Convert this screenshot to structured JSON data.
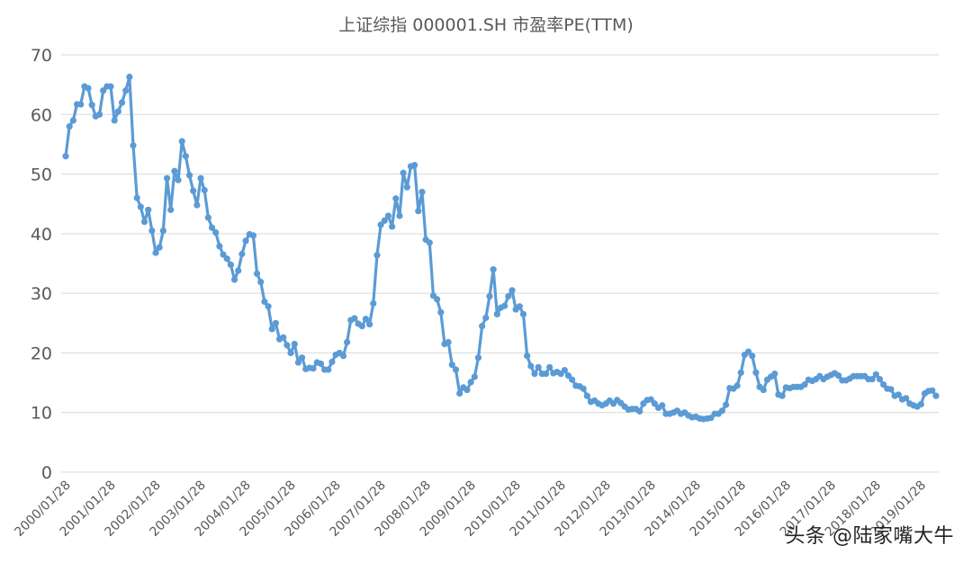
{
  "watermark": "头条 @陆家嘴大牛",
  "colors": {
    "series": "#5b9bd5",
    "grid": "#d9d9d9",
    "text": "#595959"
  },
  "chart_data": {
    "type": "line",
    "title": "上证综指 000001.SH 市盈率PE(TTM)",
    "xlabel": "",
    "ylabel": "",
    "ylim": [
      0,
      70
    ],
    "yticks": [
      0,
      10,
      20,
      30,
      40,
      50,
      60,
      70
    ],
    "grid": true,
    "legend": "none",
    "x_start": "2000/01/28",
    "x_ticks": [
      "2000/01/28",
      "2001/01/28",
      "2002/01/28",
      "2003/01/28",
      "2004/01/28",
      "2005/01/28",
      "2006/01/28",
      "2007/01/28",
      "2008/01/28",
      "2009/01/28",
      "2010/01/28",
      "2011/01/28",
      "2012/01/28",
      "2013/01/28",
      "2014/01/28",
      "2015/01/28",
      "2016/01/28",
      "2017/01/28",
      "2018/01/28",
      "2019/01/28"
    ],
    "frequency": "monthly",
    "series": [
      {
        "values": [
          53,
          58,
          59,
          61.7,
          61.7,
          64.7,
          64.4,
          61.6,
          59.7,
          60,
          64,
          64.7,
          64.7,
          59,
          60.5,
          62,
          64,
          66.3,
          54.8,
          46,
          44.5,
          42,
          44,
          40.5,
          36.8,
          37.7,
          40.5,
          49.3,
          44,
          50.5,
          49,
          55.5,
          53,
          49.8,
          47.2,
          44.8,
          49.3,
          47.3,
          42.7,
          41,
          40.2,
          37.9,
          36.5,
          35.8,
          34.8,
          32.3,
          33.8,
          36.6,
          38.8,
          39.9,
          39.7,
          33.3,
          31.9,
          28.6,
          27.8,
          24,
          25,
          22.3,
          22.6,
          21.3,
          20,
          21.5,
          18.4,
          19.2,
          17.3,
          17.5,
          17.4,
          18.4,
          18.2,
          17.2,
          17.2,
          18.5,
          19.7,
          20,
          19.5,
          21.8,
          25.5,
          25.8,
          24.9,
          24.5,
          25.7,
          24.8,
          28.3,
          36.4,
          41.5,
          42.2,
          43,
          41.2,
          45.9,
          43,
          50.2,
          47.8,
          51.3,
          51.5,
          43.8,
          47,
          39,
          38.5,
          29.6,
          29,
          26.8,
          21.5,
          21.8,
          18,
          17.2,
          13.2,
          14.2,
          13.8,
          15.1,
          16,
          19.2,
          24.5,
          25.9,
          29.5,
          34,
          26.5,
          27.6,
          27.9,
          29.5,
          30.5,
          27.3,
          27.8,
          26.5,
          19.5,
          17.8,
          16.5,
          17.6,
          16.5,
          16.5,
          17.6,
          16.6,
          16.8,
          16.5,
          17.1,
          16.2,
          15.5,
          14.5,
          14.4,
          14,
          12.8,
          11.8,
          12,
          11.5,
          11.2,
          11.5,
          12,
          11.5,
          12.1,
          11.6,
          11,
          10.5,
          10.6,
          10.6,
          10.2,
          11.5,
          12.1,
          12.2,
          11.5,
          10.8,
          11.2,
          9.8,
          9.8,
          10,
          10.3,
          9.8,
          10,
          9.5,
          9.2,
          9.3,
          9,
          8.9,
          9,
          9.1,
          9.8,
          9.8,
          10.3,
          11.3,
          14.1,
          14,
          14.5,
          16.7,
          19.7,
          20.2,
          19.5,
          16.7,
          14.3,
          13.8,
          15.5,
          16,
          16.5,
          13,
          12.8,
          14.2,
          14.1,
          14.3,
          14.3,
          14.3,
          14.7,
          15.5,
          15.3,
          15.6,
          16.1,
          15.6,
          16,
          16.3,
          16.6,
          16.2,
          15.4,
          15.4,
          15.7,
          16.1,
          16.1,
          16.1,
          16.1,
          15.6,
          15.6,
          16.4,
          15.6,
          14.7,
          14,
          13.9,
          12.8,
          13,
          12.2,
          12.4,
          11.5,
          11.2,
          11,
          11.4,
          13.2,
          13.6,
          13.7,
          12.8
        ]
      }
    ]
  }
}
